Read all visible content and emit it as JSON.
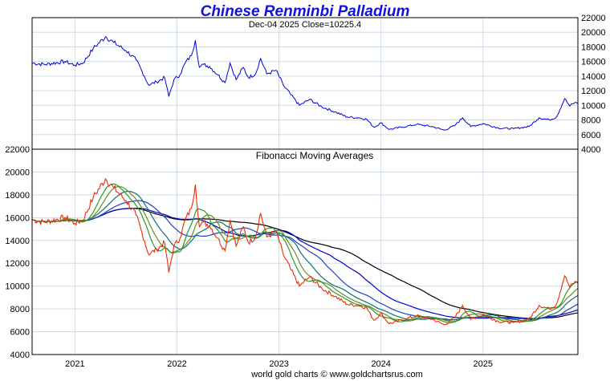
{
  "chart_data": [
    {
      "type": "line",
      "title": "Chinese Renminbi Palladium",
      "subtitle": "Dec-04  2025   Close=10225.4",
      "ylim": [
        4000,
        22000
      ],
      "y_ticks": [
        "22000",
        "20000",
        "18000",
        "16000",
        "14000",
        "12000",
        "10000",
        "8000",
        "6000",
        "4000"
      ],
      "x_ticks": [
        "2021",
        "2022",
        "2023",
        "2024",
        "2025"
      ],
      "grid": true,
      "series": [
        {
          "color": "#0000dd",
          "x": [
            2020.58,
            2020.7,
            2020.9,
            2021.0,
            2021.08,
            2021.18,
            2021.3,
            2021.38,
            2021.5,
            2021.6,
            2021.68,
            2021.72,
            2021.8,
            2021.88,
            2021.92,
            2021.97,
            2022.03,
            2022.08,
            2022.14,
            2022.18,
            2022.22,
            2022.26,
            2022.32,
            2022.4,
            2022.47,
            2022.52,
            2022.58,
            2022.65,
            2022.7,
            2022.77,
            2022.82,
            2022.88,
            2022.97,
            2023.05,
            2023.12,
            2023.2,
            2023.3,
            2023.42,
            2023.55,
            2023.67,
            2023.78,
            2023.86,
            2023.93,
            2024.0,
            2024.08,
            2024.2,
            2024.35,
            2024.5,
            2024.62,
            2024.72,
            2024.8,
            2024.88,
            2025.0,
            2025.15,
            2025.3,
            2025.45,
            2025.55,
            2025.65,
            2025.72,
            2025.8,
            2025.85,
            2025.9,
            2025.93
          ],
          "values": [
            15800,
            15600,
            16000,
            15500,
            15800,
            17800,
            19400,
            18600,
            17500,
            16200,
            14000,
            12800,
            13200,
            13800,
            11200,
            13500,
            14200,
            15800,
            16800,
            18900,
            15200,
            15600,
            15300,
            14200,
            13100,
            15800,
            13500,
            15200,
            13800,
            14300,
            16400,
            14300,
            14800,
            12600,
            11400,
            10000,
            10800,
            9800,
            9100,
            8400,
            8300,
            8100,
            7000,
            7600,
            6700,
            7000,
            7400,
            7100,
            6600,
            7200,
            8300,
            7100,
            7500,
            6900,
            6800,
            7100,
            8300,
            8000,
            8400,
            10900,
            9900,
            10400,
            10225
          ]
        }
      ]
    },
    {
      "type": "line",
      "title": "Fibonacci Moving Averages",
      "ylim": [
        4000,
        22000
      ],
      "y_ticks": [
        "22000",
        "20000",
        "18000",
        "16000",
        "14000",
        "12000",
        "10000",
        "8000",
        "6000",
        "4000"
      ],
      "x_ticks": [
        "2021",
        "2022",
        "2023",
        "2024",
        "2025"
      ],
      "grid": true,
      "series": [
        {
          "color": "#ee2a00",
          "kind": "price",
          "x": [
            2020.58,
            2020.7,
            2020.9,
            2021.0,
            2021.08,
            2021.18,
            2021.3,
            2021.38,
            2021.5,
            2021.6,
            2021.68,
            2021.72,
            2021.8,
            2021.88,
            2021.92,
            2021.97,
            2022.03,
            2022.08,
            2022.14,
            2022.18,
            2022.22,
            2022.26,
            2022.32,
            2022.4,
            2022.47,
            2022.52,
            2022.58,
            2022.65,
            2022.7,
            2022.77,
            2022.82,
            2022.88,
            2022.97,
            2023.05,
            2023.12,
            2023.2,
            2023.3,
            2023.42,
            2023.55,
            2023.67,
            2023.78,
            2023.86,
            2023.93,
            2024.0,
            2024.08,
            2024.2,
            2024.35,
            2024.5,
            2024.62,
            2024.72,
            2024.8,
            2024.88,
            2025.0,
            2025.15,
            2025.3,
            2025.45,
            2025.55,
            2025.65,
            2025.72,
            2025.8,
            2025.85,
            2025.9,
            2025.93
          ],
          "values": [
            15800,
            15600,
            16000,
            15500,
            15800,
            17800,
            19400,
            18600,
            17500,
            16200,
            14000,
            12800,
            13200,
            13800,
            11200,
            13500,
            14200,
            15800,
            16800,
            18900,
            15200,
            15600,
            15300,
            14200,
            13100,
            15800,
            13500,
            15200,
            13800,
            14300,
            16400,
            14300,
            14800,
            12600,
            11400,
            10000,
            10800,
            9800,
            9100,
            8400,
            8300,
            8100,
            7000,
            7600,
            6700,
            7000,
            7400,
            7100,
            6600,
            7200,
            8300,
            7100,
            7500,
            6900,
            6800,
            7100,
            8300,
            8000,
            8400,
            10900,
            9900,
            10400,
            10225
          ]
        },
        {
          "color": "#2a9a2a",
          "kind": "ma",
          "period": 3
        },
        {
          "color": "#6a8a20",
          "kind": "ma",
          "period": 5
        },
        {
          "color": "#107070",
          "kind": "ma",
          "period": 8
        },
        {
          "color": "#2040c0",
          "kind": "ma",
          "period": 13
        },
        {
          "color": "#0000cc",
          "kind": "ma",
          "period": 21
        },
        {
          "color": "#000000",
          "kind": "ma",
          "period": 34
        }
      ]
    }
  ],
  "footer": "world gold charts © www.goldchartsrus.com"
}
